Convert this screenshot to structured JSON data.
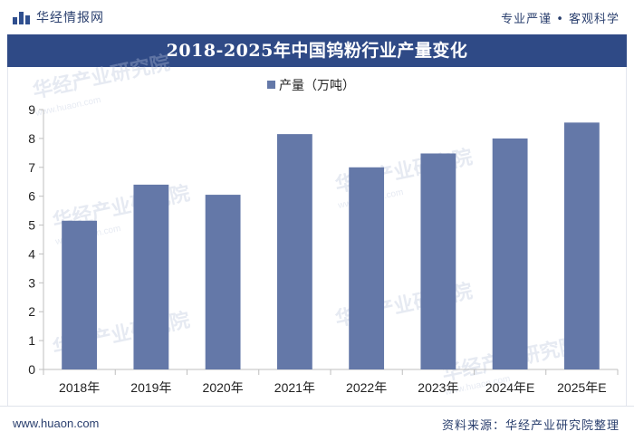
{
  "header": {
    "brand_name": "华经情报网",
    "slogan": "专业严谨 • 客观科学"
  },
  "chart_data": {
    "type": "bar",
    "title": "2018-2025年中国钨粉行业产量变化",
    "categories": [
      "2018年",
      "2019年",
      "2020年",
      "2021年",
      "2022年",
      "2023年",
      "2024年E",
      "2025年E"
    ],
    "series": [
      {
        "name": "产量（万吨）",
        "values": [
          5.15,
          6.4,
          6.05,
          8.15,
          7.0,
          7.48,
          8.0,
          8.55
        ],
        "color": "#6478a8"
      }
    ],
    "ylim": [
      0,
      9
    ],
    "yticks": [
      0,
      1,
      2,
      3,
      4,
      5,
      6,
      7,
      8,
      9
    ],
    "grid": false,
    "legend": "top-center"
  },
  "watermark": {
    "text": "华经产业研究院",
    "url_text": "www.huaon.com"
  },
  "footer": {
    "url": "www.huaon.com",
    "source": "资料来源：华经产业研究院整理"
  }
}
